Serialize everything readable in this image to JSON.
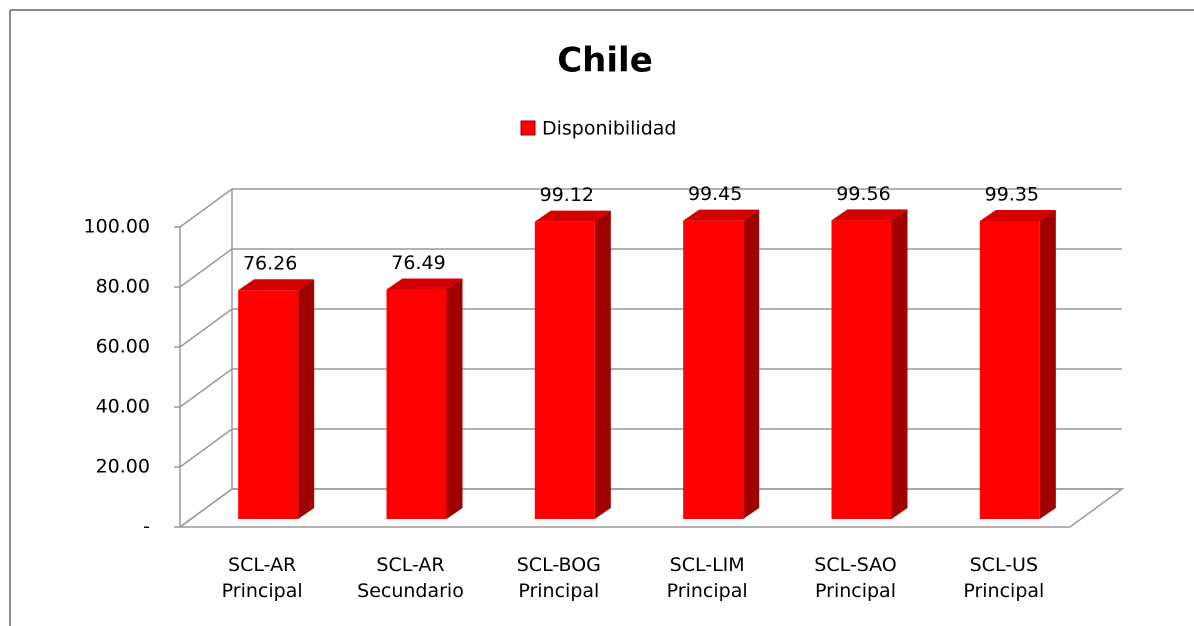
{
  "chart_data": {
    "type": "bar3d",
    "title": "Chile",
    "categories": [
      "SCL-AR Principal",
      "SCL-AR Secundario",
      "SCL-BOG Principal",
      "SCL-LIM Principal",
      "SCL-SAO Principal",
      "SCL-US Principal"
    ],
    "series": [
      {
        "name": "Disponibilidad",
        "color": "#ff0000",
        "values": [
          76.26,
          76.49,
          99.12,
          99.45,
          99.56,
          99.35
        ]
      }
    ],
    "ylim": [
      0,
      100
    ],
    "yticks": [
      {
        "value": 0,
        "label": "-"
      },
      {
        "value": 20,
        "label": "20.00"
      },
      {
        "value": 40,
        "label": "40.00"
      },
      {
        "value": 60,
        "label": "60.00"
      },
      {
        "value": 80,
        "label": "80.00"
      },
      {
        "value": 100,
        "label": "100.00"
      }
    ],
    "grid": true,
    "legend": "top"
  }
}
